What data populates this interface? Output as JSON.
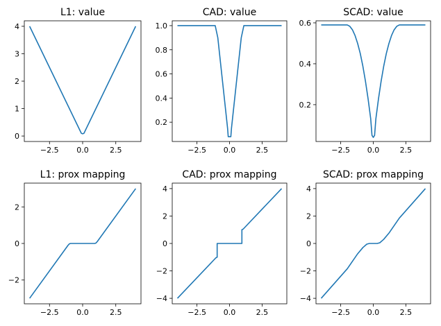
{
  "series_color": "#1f77b4",
  "chart_data": [
    {
      "type": "line",
      "title": "L1: value",
      "xlim": [
        -4.4,
        4.4
      ],
      "ylim": [
        -0.2,
        4.2
      ],
      "xticks": [
        -2.5,
        0.0,
        2.5
      ],
      "xtick_labels": [
        "−2.5",
        "0.0",
        "2.5"
      ],
      "yticks": [
        0,
        1,
        2,
        3,
        4
      ],
      "ytick_labels": [
        "0",
        "1",
        "2",
        "3",
        "4"
      ],
      "x": [
        -4,
        -2,
        -0.1,
        0,
        0.1,
        2,
        4
      ],
      "y": [
        4,
        2,
        0.1,
        0.08,
        0.1,
        2,
        4
      ]
    },
    {
      "type": "line",
      "title": "CAD: value",
      "xlim": [
        -4.4,
        4.4
      ],
      "ylim": [
        0.04,
        1.04
      ],
      "xticks": [
        -2.5,
        0.0,
        2.5
      ],
      "xtick_labels": [
        "−2.5",
        "0.0",
        "2.5"
      ],
      "yticks": [
        0.2,
        0.4,
        0.6,
        0.8,
        1.0
      ],
      "ytick_labels": [
        "0.2",
        "0.4",
        "0.6",
        "0.8",
        "1.0"
      ],
      "x": [
        -4,
        -1.1,
        -0.9,
        -0.6,
        -0.3,
        -0.15,
        -0.1,
        0.1,
        0.15,
        0.3,
        0.6,
        0.9,
        1.1,
        4
      ],
      "y": [
        1.0,
        1.0,
        0.9,
        0.6,
        0.3,
        0.15,
        0.08,
        0.08,
        0.15,
        0.3,
        0.6,
        0.9,
        1.0,
        1.0
      ]
    },
    {
      "type": "line",
      "title": "SCAD: value",
      "xlim": [
        -4.4,
        4.4
      ],
      "ylim": [
        0.02,
        0.61
      ],
      "xticks": [
        -2.5,
        0.0,
        2.5
      ],
      "xtick_labels": [
        "−2.5",
        "0.0",
        "2.5"
      ],
      "yticks": [
        0.2,
        0.4,
        0.6
      ],
      "ytick_labels": [
        "0.2",
        "0.4",
        "0.6"
      ],
      "x": [
        -4,
        -2.0,
        -1.8,
        -1.6,
        -1.4,
        -1.2,
        -1.0,
        -0.8,
        -0.6,
        -0.4,
        -0.2,
        -0.1,
        0,
        0.1,
        0.2,
        0.4,
        0.6,
        0.8,
        1.0,
        1.2,
        1.4,
        1.6,
        1.8,
        2.0,
        4
      ],
      "y": [
        0.59,
        0.59,
        0.583,
        0.566,
        0.538,
        0.499,
        0.45,
        0.388,
        0.314,
        0.229,
        0.132,
        0.05,
        0.04,
        0.05,
        0.132,
        0.229,
        0.314,
        0.388,
        0.45,
        0.499,
        0.538,
        0.566,
        0.583,
        0.59,
        0.59
      ]
    },
    {
      "type": "line",
      "title": "L1: prox mapping",
      "xlim": [
        -4.4,
        4.4
      ],
      "ylim": [
        -3.3,
        3.3
      ],
      "xticks": [
        -2.5,
        0.0,
        2.5
      ],
      "xtick_labels": [
        "−2.5",
        "0.0",
        "2.5"
      ],
      "yticks": [
        -2,
        0,
        2
      ],
      "ytick_labels": [
        "−2",
        "0",
        "2"
      ],
      "x": [
        -4,
        -1.1,
        -1.0,
        -0.9,
        0.9,
        1.0,
        1.1,
        4
      ],
      "y": [
        -3,
        -0.1,
        -0.02,
        0,
        0,
        0.02,
        0.1,
        3
      ]
    },
    {
      "type": "line",
      "title": "CAD: prox mapping",
      "xlim": [
        -4.4,
        4.4
      ],
      "ylim": [
        -4.4,
        4.4
      ],
      "xticks": [
        -2.5,
        0.0,
        2.5
      ],
      "xtick_labels": [
        "−2.5",
        "0.0",
        "2.5"
      ],
      "yticks": [
        -4,
        -2,
        0,
        2,
        4
      ],
      "ytick_labels": [
        "−4",
        "−2",
        "0",
        "2",
        "4"
      ],
      "x": [
        -4,
        -1.05,
        -0.95,
        -0.95,
        0.95,
        0.95,
        1.05,
        4
      ],
      "y": [
        -4,
        -1.05,
        -1.0,
        0,
        0,
        1.0,
        1.05,
        4
      ]
    },
    {
      "type": "line",
      "title": "SCAD: prox mapping",
      "xlim": [
        -4.4,
        4.4
      ],
      "ylim": [
        -4.4,
        4.4
      ],
      "xticks": [
        -2.5,
        0.0,
        2.5
      ],
      "xtick_labels": [
        "−2.5",
        "0.0",
        "2.5"
      ],
      "yticks": [
        -4,
        -2,
        0,
        2,
        4
      ],
      "ytick_labels": [
        "−4",
        "−2",
        "0",
        "2",
        "4"
      ],
      "x": [
        -4,
        -2.0,
        -1.6,
        -1.2,
        -0.8,
        -0.5,
        -0.3,
        0.3,
        0.5,
        0.8,
        1.2,
        1.6,
        2.0,
        4
      ],
      "y": [
        -4,
        -1.85,
        -1.3,
        -0.75,
        -0.3,
        -0.05,
        0,
        0,
        0.05,
        0.3,
        0.75,
        1.3,
        1.85,
        4
      ]
    }
  ]
}
